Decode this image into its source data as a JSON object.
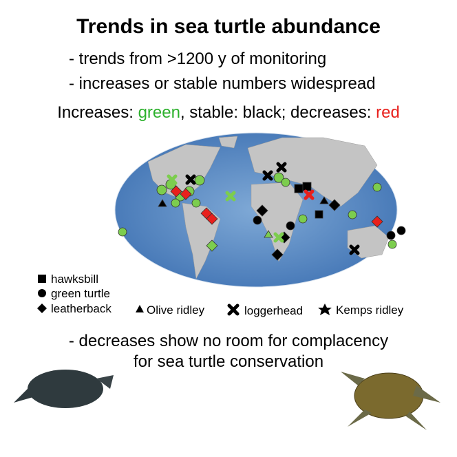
{
  "title": "Trends in sea turtle abundance",
  "bullets": [
    "- trends from >1200 y of monitoring",
    "- increases or stable numbers widespread"
  ],
  "key": {
    "increases": "Increases:",
    "green": "green",
    "middle": ", stable: black; decreases:",
    "red": "red"
  },
  "legend": [
    "hawksbill",
    "green turtle",
    "leatherback",
    "Olive ridley",
    "loggerhead",
    "Kemps ridley"
  ],
  "footer": [
    "- decreases show no room for complacency",
    "for sea turtle conservation"
  ]
}
